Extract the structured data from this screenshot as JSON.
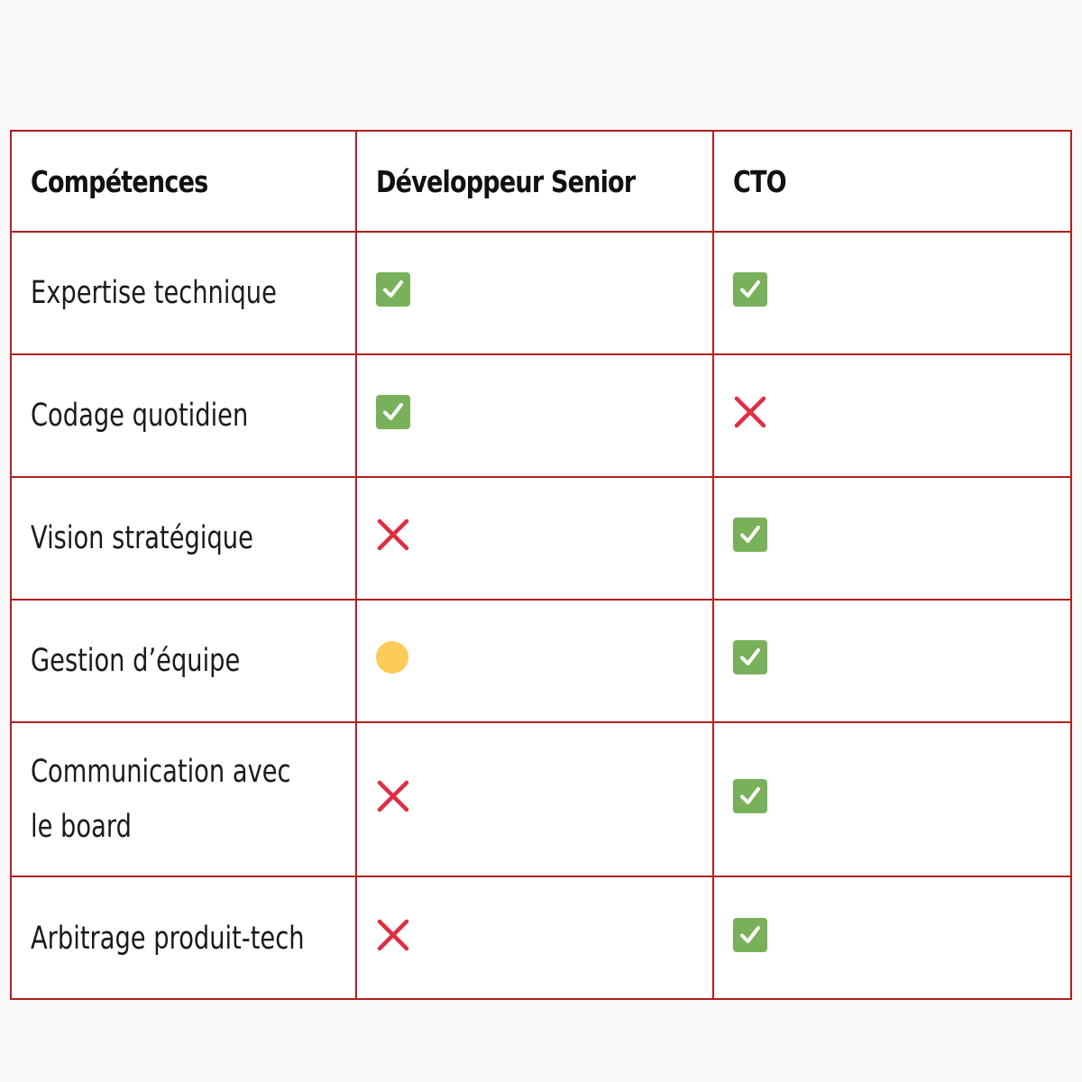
{
  "table": {
    "headers": [
      "Compétences",
      "Développeur Senior",
      "CTO"
    ],
    "rows": [
      {
        "label": "Expertise technique",
        "senior": "check-icon",
        "cto": "check-icon"
      },
      {
        "label": "Codage quotidien",
        "senior": "check-icon",
        "cto": "cross-icon"
      },
      {
        "label": "Vision stratégique",
        "senior": "cross-icon",
        "cto": "check-icon"
      },
      {
        "label": "Gestion d’équipe",
        "senior": "partial-circle-icon",
        "cto": "check-icon"
      },
      {
        "label": "Communication avec le board",
        "senior": "cross-icon",
        "cto": "check-icon"
      },
      {
        "label": "Arbitrage produit-tech",
        "senior": "cross-icon",
        "cto": "check-icon"
      }
    ]
  },
  "colors": {
    "border": "#b11f1f",
    "check": "#78b159",
    "cross": "#dd2e44",
    "partial": "#fdcb58",
    "background": "#faf9f7"
  }
}
